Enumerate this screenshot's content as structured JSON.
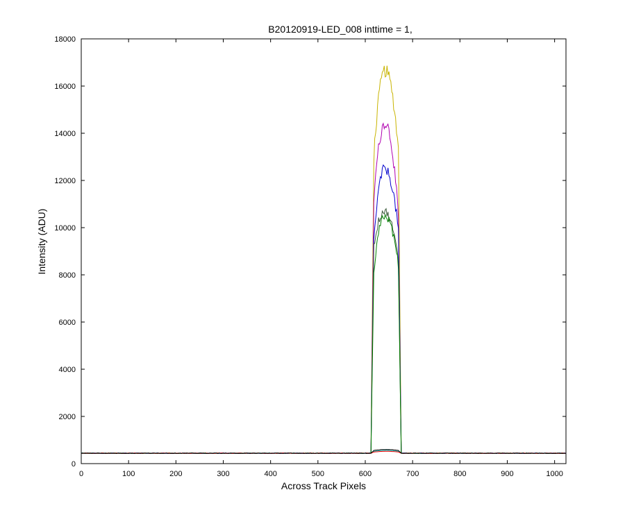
{
  "chart_data": {
    "type": "line",
    "title": "B20120919-LED_008 inttime = 1,",
    "xlabel": "Across Track Pixels",
    "ylabel": "Intensity (ADU)",
    "xlim": [
      0,
      1024
    ],
    "ylim": [
      0,
      18000
    ],
    "xticks": [
      0,
      100,
      200,
      300,
      400,
      500,
      600,
      700,
      800,
      900,
      1000
    ],
    "yticks": [
      0,
      2000,
      4000,
      6000,
      8000,
      10000,
      12000,
      14000,
      16000,
      18000
    ],
    "grid": false,
    "legend": "none",
    "baseline": 440,
    "pulse": {
      "rise_start": 612,
      "rise_end": 618,
      "fall_start": 670,
      "fall_end": 676
    },
    "series": [
      {
        "color": "#c8b400",
        "peak": 16650,
        "edge_left": 13000,
        "edge_right": 13300,
        "peak_x": 642
      },
      {
        "color": "#b000b0",
        "peak": 14450,
        "edge_left": 11200,
        "edge_right": 10400,
        "peak_x": 642
      },
      {
        "color": "#0000cc",
        "peak": 12500,
        "edge_left": 9400,
        "edge_right": 9900,
        "peak_x": 641
      },
      {
        "color": "#3a5a3a",
        "peak": 10700,
        "edge_left": 9200,
        "edge_right": 8600,
        "peak_x": 640
      },
      {
        "color": "#008000",
        "peak": 10500,
        "edge_left": 8000,
        "edge_right": 8400,
        "peak_x": 641
      },
      {
        "color": "#00a0a0",
        "peak": 560,
        "edge_left": 520,
        "edge_right": 520,
        "peak_x": 645
      },
      {
        "color": "#ff0000",
        "peak": 520,
        "edge_left": 490,
        "edge_right": 490,
        "peak_x": 645
      },
      {
        "color": "#000000",
        "peak": 600,
        "edge_left": 560,
        "edge_right": 560,
        "peak_x": 645
      }
    ]
  }
}
